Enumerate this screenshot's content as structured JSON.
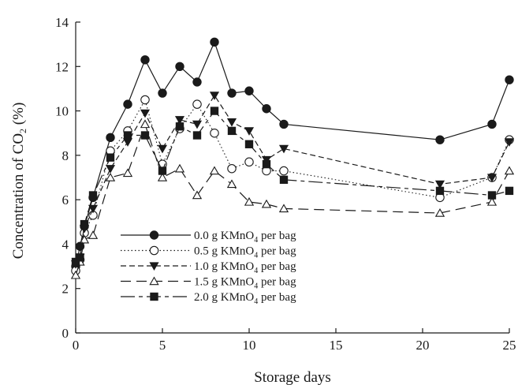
{
  "chart_data": {
    "type": "line",
    "xlabel": "Storage days",
    "ylabel_main": "Concentration of CO",
    "ylabel_sub": "2",
    "ylabel_tail": " (%)",
    "xlim": [
      0,
      25
    ],
    "ylim": [
      0,
      14
    ],
    "xticks": [
      0,
      5,
      10,
      15,
      20,
      25
    ],
    "yticks": [
      0,
      2,
      4,
      6,
      8,
      10,
      12,
      14
    ],
    "grid": false,
    "legend_position": "center-left",
    "series": [
      {
        "name": "0.0 g KMnO4 per bag",
        "legend": {
          "pre": "0.0 g KMnO",
          "sub": "4",
          "post": " per bag"
        },
        "marker": "filled-circle",
        "dash": "solid",
        "color": "#1a1a1a",
        "x": [
          0,
          0.25,
          0.5,
          1,
          2,
          3,
          4,
          5,
          6,
          7,
          8,
          9,
          10,
          11,
          12,
          21,
          24,
          25
        ],
        "y": [
          3.0,
          3.9,
          4.8,
          6.1,
          8.8,
          10.3,
          12.3,
          10.8,
          12.0,
          11.3,
          13.1,
          10.8,
          10.9,
          10.1,
          9.4,
          8.7,
          9.4,
          11.4
        ]
      },
      {
        "name": "0.5 g KMnO4 per bag",
        "legend": {
          "pre": "0.5 g KMnO",
          "sub": "4",
          "post": " per bag"
        },
        "marker": "open-circle",
        "dash": "dotted",
        "color": "#1a1a1a",
        "x": [
          0,
          0.25,
          0.5,
          1,
          2,
          3,
          4,
          5,
          6,
          7,
          8,
          9,
          10,
          11,
          12,
          21,
          24,
          25
        ],
        "y": [
          2.8,
          3.3,
          4.5,
          5.3,
          8.2,
          9.1,
          10.5,
          7.6,
          9.2,
          10.3,
          9.0,
          7.4,
          7.7,
          7.3,
          7.3,
          6.1,
          7.0,
          8.7
        ]
      },
      {
        "name": "1.0 g KMnO4 per bag",
        "legend": {
          "pre": "1.0 g KMnO",
          "sub": "4",
          "post": " per bag"
        },
        "marker": "filled-triangle-down",
        "dash": "dashed",
        "color": "#1a1a1a",
        "x": [
          0,
          0.25,
          0.5,
          1,
          2,
          3,
          4,
          5,
          6,
          7,
          8,
          9,
          10,
          11,
          12,
          21,
          24,
          25
        ],
        "y": [
          3.1,
          3.4,
          4.7,
          5.6,
          7.4,
          8.6,
          9.9,
          8.3,
          9.6,
          9.4,
          10.7,
          9.5,
          9.1,
          7.8,
          8.3,
          6.7,
          7.0,
          8.6
        ]
      },
      {
        "name": "1.5 g KMnO4 per bag",
        "legend": {
          "pre": "1.5 g KMnO",
          "sub": "4",
          "post": " per bag"
        },
        "marker": "open-triangle-up",
        "dash": "long-dash",
        "color": "#1a1a1a",
        "x": [
          0,
          0.25,
          0.5,
          1,
          2,
          3,
          4,
          5,
          6,
          7,
          8,
          9,
          10,
          11,
          12,
          21,
          24,
          25
        ],
        "y": [
          2.6,
          3.2,
          4.2,
          4.4,
          7.0,
          7.2,
          9.4,
          7.0,
          7.4,
          6.2,
          7.3,
          6.7,
          5.9,
          5.8,
          5.6,
          5.4,
          5.9,
          7.3
        ]
      },
      {
        "name": "2.0 g KMnO4 per bag",
        "legend": {
          "pre": "2.0 g KMnO",
          "sub": "4",
          "post": " per bag"
        },
        "marker": "filled-square",
        "dash": "long-dash-dot",
        "color": "#1a1a1a",
        "x": [
          0,
          0.25,
          0.5,
          1,
          2,
          3,
          4,
          5,
          6,
          7,
          8,
          9,
          10,
          11,
          12,
          21,
          24,
          25
        ],
        "y": [
          3.2,
          3.4,
          4.9,
          6.2,
          7.9,
          8.9,
          8.9,
          7.3,
          9.3,
          8.9,
          10.0,
          9.1,
          8.5,
          7.6,
          6.9,
          6.4,
          6.2,
          6.4
        ]
      }
    ]
  }
}
